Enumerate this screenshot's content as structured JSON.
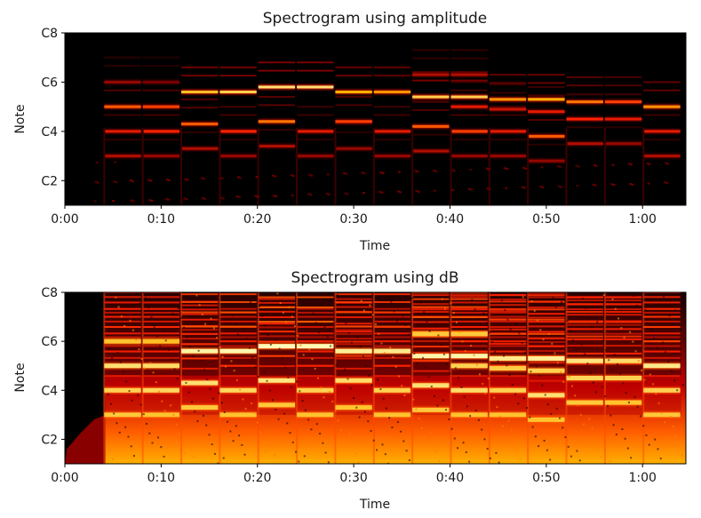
{
  "chart_data": [
    {
      "type": "heatmap",
      "title": "Spectrogram using amplitude",
      "xlabel": "Time",
      "ylabel": "Note",
      "x_ticks": [
        "0:00",
        "0:10",
        "0:20",
        "0:30",
        "0:40",
        "0:50",
        "1:00"
      ],
      "y_ticks": [
        "C2",
        "C4",
        "C6",
        "C8"
      ],
      "colormap": [
        "#000000",
        "#7a0000",
        "#ff2200",
        "#ffb000",
        "#ffffc0"
      ],
      "scale": "linear amplitude",
      "segments": [
        {
          "start": 4,
          "end": 8,
          "notes": [
            [
              3.0,
              0.35
            ],
            [
              4.0,
              0.45
            ],
            [
              5.0,
              0.6
            ],
            [
              6.0,
              0.3
            ]
          ]
        },
        {
          "start": 8,
          "end": 12,
          "notes": [
            [
              3.0,
              0.3
            ],
            [
              4.0,
              0.5
            ],
            [
              5.0,
              0.55
            ],
            [
              6.0,
              0.25
            ]
          ]
        },
        {
          "start": 12,
          "end": 16,
          "notes": [
            [
              3.3,
              0.35
            ],
            [
              4.3,
              0.6
            ],
            [
              5.6,
              0.8
            ]
          ]
        },
        {
          "start": 16,
          "end": 20,
          "notes": [
            [
              3.0,
              0.3
            ],
            [
              4.0,
              0.5
            ],
            [
              5.6,
              0.85
            ]
          ]
        },
        {
          "start": 20,
          "end": 24,
          "notes": [
            [
              3.4,
              0.35
            ],
            [
              4.4,
              0.65
            ],
            [
              5.8,
              0.9
            ]
          ]
        },
        {
          "start": 24,
          "end": 28,
          "notes": [
            [
              3.0,
              0.3
            ],
            [
              4.0,
              0.45
            ],
            [
              5.8,
              0.9
            ]
          ]
        },
        {
          "start": 28,
          "end": 32,
          "notes": [
            [
              3.3,
              0.3
            ],
            [
              4.4,
              0.55
            ],
            [
              5.6,
              0.75
            ]
          ]
        },
        {
          "start": 32,
          "end": 36,
          "notes": [
            [
              3.0,
              0.3
            ],
            [
              4.0,
              0.45
            ],
            [
              5.6,
              0.7
            ]
          ]
        },
        {
          "start": 36,
          "end": 40,
          "notes": [
            [
              3.2,
              0.35
            ],
            [
              4.2,
              0.6
            ],
            [
              5.4,
              0.85
            ],
            [
              6.3,
              0.35
            ]
          ]
        },
        {
          "start": 40,
          "end": 44,
          "notes": [
            [
              3.0,
              0.3
            ],
            [
              4.0,
              0.55
            ],
            [
              5.0,
              0.45
            ],
            [
              5.4,
              0.85
            ],
            [
              6.3,
              0.35
            ]
          ]
        },
        {
          "start": 44,
          "end": 48,
          "notes": [
            [
              3.0,
              0.3
            ],
            [
              4.0,
              0.45
            ],
            [
              4.9,
              0.4
            ],
            [
              5.3,
              0.7
            ]
          ]
        },
        {
          "start": 48,
          "end": 52,
          "notes": [
            [
              2.8,
              0.3
            ],
            [
              3.8,
              0.6
            ],
            [
              4.8,
              0.45
            ],
            [
              5.3,
              0.75
            ]
          ]
        },
        {
          "start": 52,
          "end": 56,
          "notes": [
            [
              3.5,
              0.35
            ],
            [
              4.5,
              0.5
            ],
            [
              5.2,
              0.65
            ]
          ]
        },
        {
          "start": 56,
          "end": 60,
          "notes": [
            [
              3.5,
              0.3
            ],
            [
              4.5,
              0.45
            ],
            [
              5.2,
              0.55
            ]
          ]
        },
        {
          "start": 60,
          "end": 64,
          "notes": [
            [
              3.0,
              0.35
            ],
            [
              4.0,
              0.45
            ],
            [
              5.0,
              0.7
            ]
          ]
        }
      ]
    },
    {
      "type": "heatmap",
      "title": "Spectrogram using dB",
      "xlabel": "Time",
      "ylabel": "Note",
      "x_ticks": [
        "0:00",
        "0:10",
        "0:20",
        "0:30",
        "0:40",
        "0:50",
        "1:00"
      ],
      "y_ticks": [
        "C2",
        "C4",
        "C6",
        "C8"
      ],
      "colormap": [
        "#000000",
        "#7a0000",
        "#ff2200",
        "#ffb000",
        "#ffffc0"
      ],
      "scale": "dB",
      "segments": "same note events as amplitude panel"
    }
  ]
}
